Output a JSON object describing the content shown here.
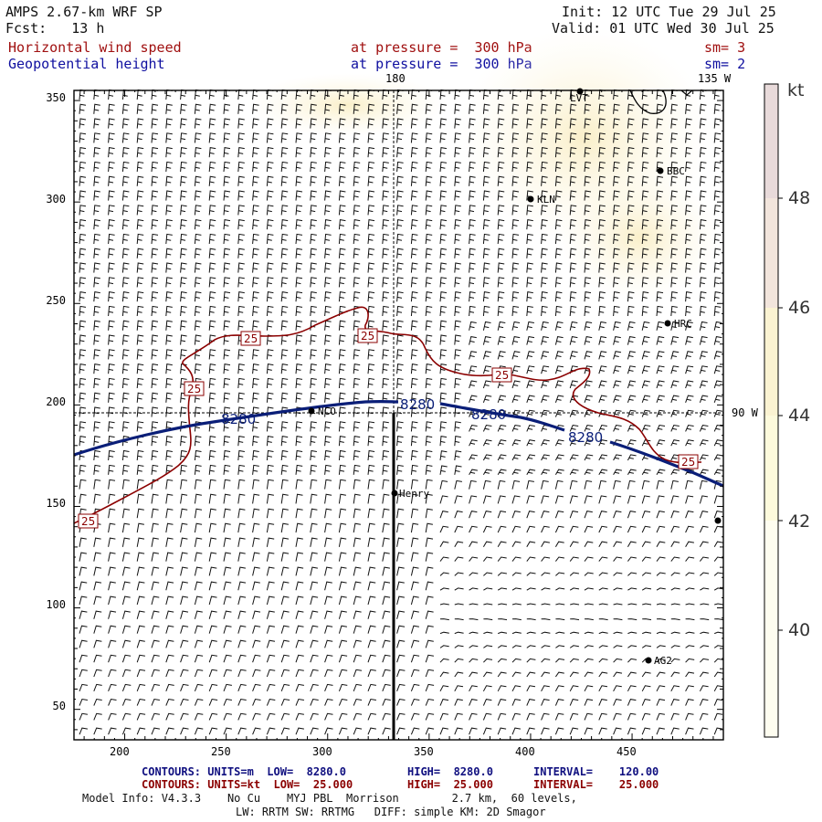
{
  "header": {
    "model": "AMPS 2.67-km WRF SP",
    "init": "Init: 12 UTC Tue 29 Jul 25",
    "fcst": "Fcst:   13 h",
    "valid": "Valid: 01 UTC Wed 30 Jul 25",
    "field1": "Horizontal wind speed",
    "field1_level": "at pressure =  300 hPa",
    "field1_sm": "sm= 3",
    "field2": "Geopotential height",
    "field2_level": "at pressure =  300 hPa",
    "field2_sm": "sm= 2"
  },
  "map": {
    "meridian_label": "180",
    "meridian_label_135": "135 W",
    "meridian_label_90": "90 W",
    "x_ticks": [
      "200",
      "250",
      "300",
      "350",
      "400",
      "450"
    ],
    "y_ticks": [
      "350",
      "300",
      "250",
      "200",
      "150",
      "100",
      "50"
    ],
    "stations": [
      {
        "name": "LVT"
      },
      {
        "name": "BBC"
      },
      {
        "name": "KLN"
      },
      {
        "name": "HRC"
      },
      {
        "name": "NCO"
      },
      {
        "name": "Henry"
      },
      {
        "name": "AG2"
      },
      {
        "name": ""
      }
    ],
    "contour_labels": {
      "height": [
        "8280",
        "8280",
        "8280",
        "8280"
      ],
      "wind": [
        "25",
        "25",
        "25",
        "25",
        "25",
        "25"
      ]
    }
  },
  "colorbar": {
    "unit": "kt",
    "labels": [
      "48",
      "46",
      "44",
      "42",
      "40"
    ],
    "colors": [
      "#e8dada",
      "#f2e5dc",
      "#fbf3d2",
      "#fdfadc",
      "#fefdf0"
    ]
  },
  "footer": {
    "line1_a": "CONTOURS: UNITS=m  LOW=  8280.0",
    "line1_b": "HIGH=  8280.0",
    "line1_c": "INTERVAL=    120.00",
    "line2_a": "CONTOURS: UNITS=kt  LOW=  25.000",
    "line2_b": "HIGH=  25.000",
    "line2_c": "INTERVAL=    25.000",
    "line3": "Model Info: V4.3.3    No Cu    MYJ PBL  Morrison        2.7 km,  60 levels,",
    "line4": "LW: RRTM SW: RRTMG   DIFF: simple KM: 2D Smagor"
  },
  "colors": {
    "height_contour": "#0a1e78",
    "wind_contour": "#8b0000",
    "frame": "#000000",
    "shade": "#fbf1cf"
  }
}
